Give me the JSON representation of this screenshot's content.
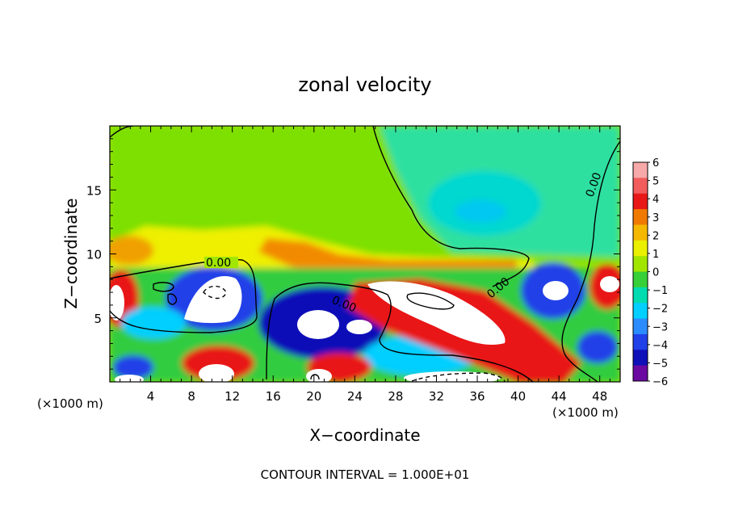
{
  "chart_data": {
    "type": "heatmap",
    "title": "zonal velocity",
    "xlabel": "X−coordinate",
    "ylabel": "Z−coordinate",
    "x_unit_left": "(×1000 m)",
    "x_unit_right": "(×1000 m)",
    "xlim": [
      0,
      50
    ],
    "ylim": [
      0,
      20
    ],
    "x_ticks": [
      4,
      8,
      12,
      16,
      20,
      24,
      28,
      32,
      36,
      40,
      44,
      48
    ],
    "y_ticks": [
      5,
      10,
      15
    ],
    "colorbar": {
      "levels": [
        6,
        5,
        4,
        3,
        2,
        1,
        0,
        -1,
        -2,
        -3,
        -4,
        -5,
        -6
      ],
      "labels": [
        "6",
        "5",
        "4",
        "3",
        "2",
        "1",
        "0",
        "−1",
        "−2",
        "−3",
        "−4",
        "−5",
        "−6"
      ],
      "colors": [
        "#f7a8a8",
        "#f25c5c",
        "#e81818",
        "#f07a00",
        "#f5b800",
        "#eaf000",
        "#a2e600",
        "#38d038",
        "#00dcb0",
        "#00cfff",
        "#2a8cff",
        "#2040e8",
        "#1010b8",
        "#6a0aa0"
      ]
    },
    "contour_labels": [
      {
        "text": "0.00",
        "x": 10.8,
        "y": 9.3
      },
      {
        "text": "0.00",
        "x": 23.0,
        "y": 6.7
      },
      {
        "text": "0.00",
        "x": 38.0,
        "y": 7.7
      },
      {
        "text": "0.00",
        "x": 47.8,
        "y": 15.4
      }
    ],
    "annotation": "CONTOUR INTERVAL = 1.000E+01",
    "grid": false
  }
}
